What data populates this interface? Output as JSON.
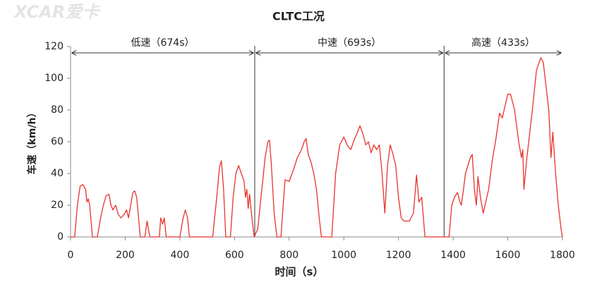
{
  "chart_data": {
    "type": "line",
    "title": "CLTC工况",
    "watermark": "XCAR爱卡",
    "x_label": "时间（s）",
    "y_label": "车速（km/h）",
    "color": "#e8322c",
    "xlim": [
      0,
      1800
    ],
    "ylim": [
      0,
      120
    ],
    "xticks": [
      0,
      200,
      400,
      600,
      800,
      1000,
      1200,
      1400,
      1600,
      1800
    ],
    "yticks": [
      0,
      20,
      40,
      60,
      80,
      100,
      120
    ],
    "grid": false,
    "phases": [
      {
        "label": "低速（674s）",
        "start": 0,
        "end": 674
      },
      {
        "label": "中速（693s）",
        "start": 674,
        "end": 1367
      },
      {
        "label": "高速（433s）",
        "start": 1367,
        "end": 1800
      }
    ],
    "x": [
      0,
      15,
      25,
      35,
      45,
      55,
      60,
      65,
      70,
      75,
      80,
      98,
      110,
      120,
      130,
      140,
      148,
      155,
      165,
      175,
      185,
      195,
      205,
      212,
      220,
      228,
      235,
      242,
      250,
      255,
      272,
      280,
      290,
      325,
      330,
      337,
      343,
      350,
      400,
      412,
      420,
      428,
      435,
      520,
      535,
      545,
      552,
      560,
      568,
      585,
      595,
      605,
      615,
      625,
      635,
      640,
      645,
      650,
      655,
      665,
      672,
      685,
      700,
      712,
      722,
      728,
      735,
      745,
      755,
      770,
      778,
      785,
      800,
      815,
      830,
      845,
      855,
      862,
      870,
      880,
      890,
      900,
      910,
      918,
      956,
      970,
      985,
      1000,
      1012,
      1025,
      1040,
      1050,
      1059,
      1070,
      1080,
      1090,
      1100,
      1110,
      1120,
      1130,
      1140,
      1150,
      1160,
      1170,
      1180,
      1190,
      1200,
      1210,
      1220,
      1240,
      1255,
      1266,
      1275,
      1285,
      1297,
      1385,
      1395,
      1405,
      1416,
      1425,
      1430,
      1438,
      1445,
      1463,
      1470,
      1478,
      1485,
      1491,
      1500,
      1510,
      1530,
      1543,
      1555,
      1570,
      1580,
      1600,
      1610,
      1625,
      1640,
      1650,
      1655,
      1659,
      1670,
      1690,
      1705,
      1721,
      1730,
      1750,
      1758,
      1765,
      1775,
      1785,
      1795,
      1800
    ],
    "values": [
      0,
      0,
      20,
      32,
      33,
      30,
      22,
      24,
      20,
      10,
      0,
      0,
      12,
      20,
      26,
      27,
      20,
      17,
      20,
      14,
      12,
      14,
      17,
      12,
      20,
      28,
      29,
      25,
      10,
      0,
      0,
      10,
      0,
      0,
      12,
      8,
      12,
      0,
      0,
      12,
      17,
      12,
      0,
      0,
      25,
      44,
      48,
      30,
      0,
      0,
      25,
      40,
      45,
      40,
      35,
      25,
      30,
      18,
      27,
      10,
      0,
      5,
      30,
      50,
      60,
      61,
      45,
      15,
      0,
      0,
      20,
      36,
      35,
      42,
      50,
      55,
      60,
      62,
      52,
      47,
      40,
      30,
      12,
      0,
      0,
      40,
      58,
      63,
      58,
      55,
      62,
      66,
      70,
      65,
      58,
      60,
      53,
      58,
      55,
      58,
      40,
      15,
      45,
      58,
      52,
      45,
      25,
      12,
      10,
      10,
      15,
      39,
      22,
      25,
      0,
      0,
      20,
      25,
      28,
      22,
      20,
      30,
      40,
      50,
      52,
      30,
      20,
      38,
      25,
      15,
      30,
      48,
      60,
      78,
      75,
      90,
      90,
      80,
      60,
      50,
      55,
      30,
      50,
      80,
      105,
      113,
      110,
      80,
      50,
      66,
      40,
      20,
      5,
      0
    ]
  }
}
